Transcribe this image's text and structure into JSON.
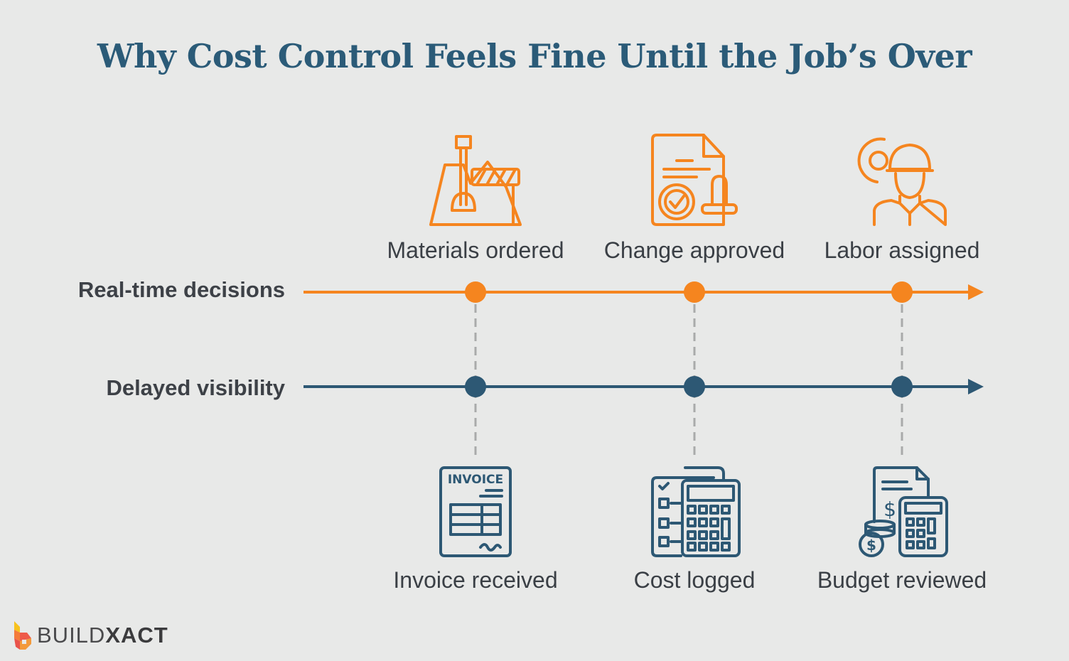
{
  "title": "Why Cost Control Feels Fine Until the Job’s Over",
  "colors": {
    "background": "#e8e9e8",
    "realtime": "#f5851f",
    "delayed": "#2d5874",
    "title": "#2b5b78",
    "connector": "#a9aaaa"
  },
  "rows": {
    "realtime": {
      "label": "Real-time decisions"
    },
    "delayed": {
      "label": "Delayed visibility"
    }
  },
  "top_events": [
    {
      "label": "Materials ordered",
      "icon": "shovel-barrier-icon"
    },
    {
      "label": "Change approved",
      "icon": "document-stamp-icon"
    },
    {
      "label": "Labor assigned",
      "icon": "worker-gear-icon"
    }
  ],
  "bottom_events": [
    {
      "label": "Invoice received",
      "icon": "invoice-icon",
      "icon_text": "INVOICE"
    },
    {
      "label": "Cost logged",
      "icon": "checklist-calculator-icon"
    },
    {
      "label": "Budget reviewed",
      "icon": "budget-calculator-coins-icon"
    }
  ],
  "logo": {
    "text_light": "BUILD",
    "text_bold": "XACT"
  }
}
